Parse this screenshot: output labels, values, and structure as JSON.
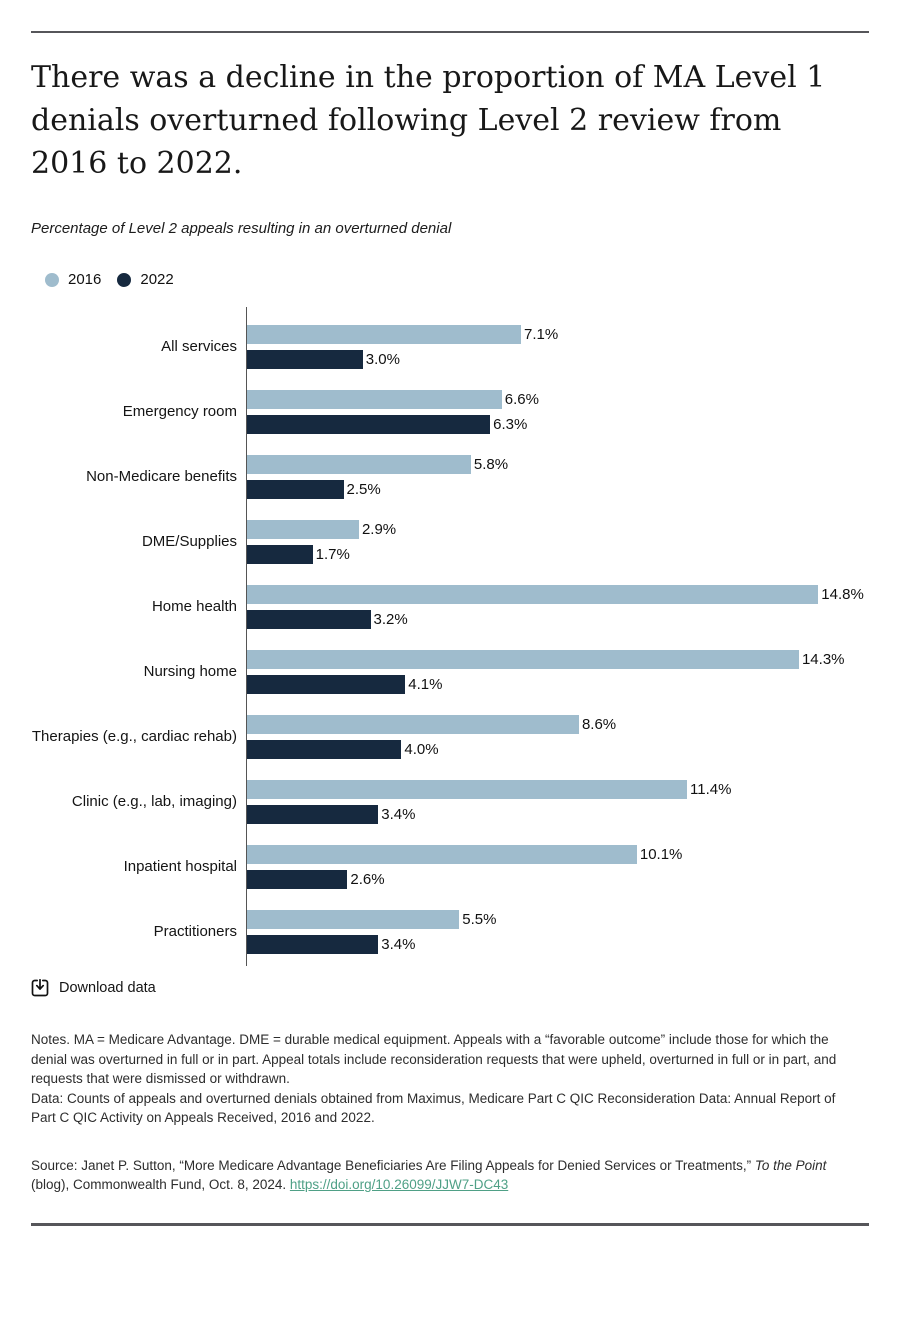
{
  "header": {
    "title_lines": [
      "There was a decline in the proportion of MA Level 1",
      "denials overturned following Level 2 review from",
      "2016 to 2022."
    ],
    "subtitle": "Percentage of Level 2 appeals resulting in an overturned denial"
  },
  "chart_data": {
    "type": "bar",
    "orientation": "horizontal",
    "title": "Percentage of Level 2 appeals resulting in an overturned denial",
    "categories": [
      "All services",
      "Emergency room",
      "Non-Medicare benefits",
      "DME/Supplies",
      "Home health",
      "Nursing home",
      "Therapies (e.g., cardiac rehab)",
      "Clinic (e.g., lab, imaging)",
      "Inpatient hospital",
      "Practitioners"
    ],
    "series": [
      {
        "name": "2016",
        "color": "#9fbccd",
        "values": [
          7.1,
          6.6,
          5.8,
          2.9,
          14.8,
          14.3,
          8.6,
          11.4,
          10.1,
          5.5
        ]
      },
      {
        "name": "2022",
        "color": "#16293f",
        "values": [
          3.0,
          6.3,
          2.5,
          1.7,
          3.2,
          4.1,
          4.0,
          3.4,
          2.6,
          3.4
        ]
      }
    ],
    "value_suffix": "%",
    "xlim": [
      0,
      16
    ],
    "legend_position": "top-left",
    "grid": false
  },
  "footer": {
    "download_label": "Download data",
    "notes": "Notes. MA = Medicare Advantage. DME = durable medical equipment. Appeals with a “favorable outcome” include those for which the denial was overturned in full or in part. Appeal totals include reconsideration requests that were upheld, overturned in full or in part, and requests that were dismissed or withdrawn.",
    "data_note": "Data: Counts of appeals and overturned denials obtained from Maximus, Medicare Part C QIC Reconsideration Data: Annual Report of Part C QIC Activity on Appeals Received, 2016 and 2022.",
    "source_prefix": "Source: Janet P. Sutton, “More Medicare Advantage Beneficiaries Are Filing Appeals for Denied Services or Treatments,” ",
    "source_italic": "To the Point",
    "source_suffix": " (blog), Commonwealth Fund, Oct. 8, 2024. ",
    "source_link": "https://doi.org/10.26099/JJW7-DC43"
  }
}
